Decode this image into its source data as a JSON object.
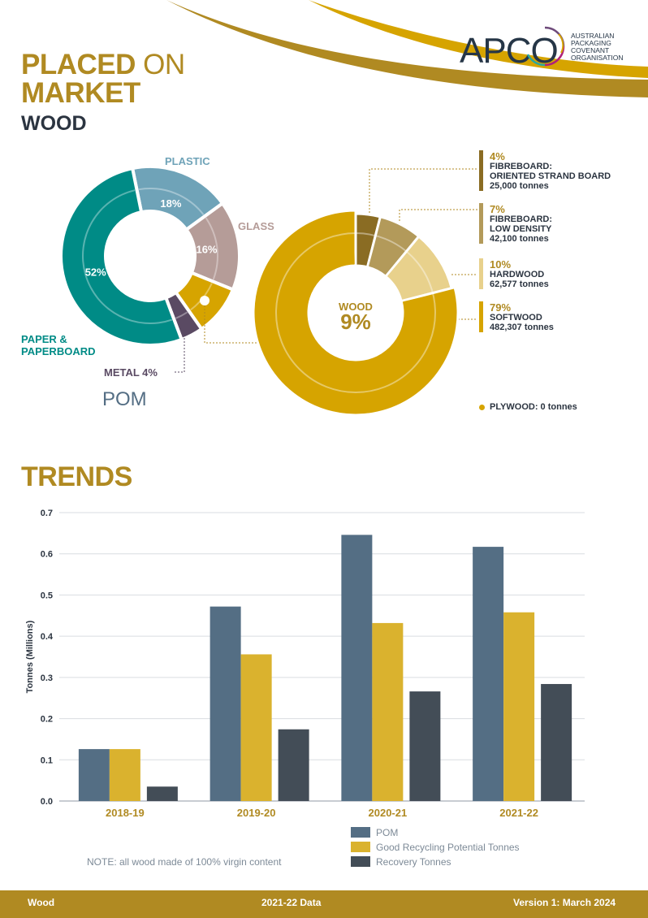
{
  "header": {
    "title_bold": "PLACED",
    "title_light": "ON",
    "title_line2": "MARKET",
    "subtitle": "WOOD",
    "logo_text": "APCO",
    "logo_org": [
      "AUSTRALIAN",
      "PACKAGING",
      "COVENANT",
      "ORGANISATION"
    ]
  },
  "colors": {
    "gold": "#b08a22",
    "navy": "#2b3440",
    "teal": "#008b86",
    "plastic": "#6fa3b8",
    "glass": "#b59c98",
    "metal": "#5a4a63",
    "wood": "#d6a400",
    "pom_bar": "#546e84",
    "grp_bar": "#dab22e",
    "rec_bar": "#434d57"
  },
  "chart_data": [
    {
      "type": "pie",
      "title": "POM",
      "slices": [
        {
          "label": "PLASTIC",
          "value": 18,
          "display": "18%"
        },
        {
          "label": "GLASS",
          "value": 16,
          "display": "16%"
        },
        {
          "label": "WOOD",
          "value": 9,
          "display": ""
        },
        {
          "label": "METAL",
          "value": 4,
          "display": "METAL 4%"
        },
        {
          "label": "PAPER & PAPERBOARD",
          "value": 52,
          "display": "52%"
        }
      ]
    },
    {
      "type": "pie",
      "center_label": "WOOD",
      "center_value": "9%",
      "slices": [
        {
          "label": "FIBREBOARD: ORIENTED STRAND BOARD",
          "value": 4,
          "display": "4%",
          "tonnes": "25,000 tonnes",
          "color": "#8a6c23"
        },
        {
          "label": "FIBREBOARD: LOW DENSITY",
          "value": 7,
          "display": "7%",
          "tonnes": "42,100 tonnes",
          "color": "#b39a5a"
        },
        {
          "label": "HARDWOOD",
          "value": 10,
          "display": "10%",
          "tonnes": "62,577 tonnes",
          "color": "#e8d18c"
        },
        {
          "label": "SOFTWOOD",
          "value": 79,
          "display": "79%",
          "tonnes": "482,307 tonnes",
          "color": "#d6a400"
        }
      ],
      "extra": "PLYWOOD: 0 tonnes"
    },
    {
      "type": "bar",
      "title": "TRENDS",
      "categories": [
        "2018-19",
        "2019-20",
        "2020-21",
        "2021-22"
      ],
      "series": [
        {
          "name": "POM",
          "values": [
            0.126,
            0.472,
            0.646,
            0.617
          ]
        },
        {
          "name": "Good Recycling Potential Tonnes",
          "values": [
            0.126,
            0.356,
            0.432,
            0.458
          ]
        },
        {
          "name": "Recovery Tonnes",
          "values": [
            0.035,
            0.174,
            0.266,
            0.284
          ]
        }
      ],
      "ylabel": "Tonnes (Millions)",
      "ylim": [
        0,
        0.7
      ],
      "yticks": [
        "0.0",
        "0.1",
        "0.2",
        "0.3",
        "0.4",
        "0.5",
        "0.6",
        "0.7"
      ],
      "grid": true,
      "legend": "bottom-right"
    }
  ],
  "labels": {
    "plastic": "PLASTIC",
    "glass": "GLASS",
    "paper_line1": "PAPER &",
    "paper_line2": "PAPERBOARD",
    "metal": "METAL 4%",
    "pom": "POM",
    "fb_osb_1": "FIBREBOARD:",
    "fb_osb_2": "ORIENTED STRAND BOARD",
    "fb_ld_1": "FIBREBOARD:",
    "fb_ld_2": "LOW DENSITY"
  },
  "note": "NOTE: all wood made of 100% virgin content",
  "footer": {
    "left": "Wood",
    "center": "2021-22 Data",
    "right": "Version 1: March 2024"
  }
}
